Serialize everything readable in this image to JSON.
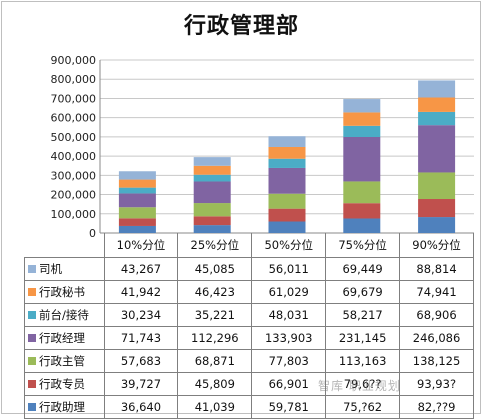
{
  "chart_data": {
    "type": "bar",
    "stacked": true,
    "title": "行政管理部",
    "categories": [
      "10%分位",
      "25%分位",
      "50%分位",
      "75%分位",
      "90%分位"
    ],
    "ylim": [
      0,
      900000
    ],
    "yticks": [
      "0",
      "100,000",
      "200,000",
      "300,000",
      "400,000",
      "500,000",
      "600,000",
      "700,000",
      "800,000",
      "900,000"
    ],
    "grid": true,
    "series": [
      {
        "name": "行政助理",
        "color": "#4f81bd",
        "values": [
          36640,
          41039,
          59781,
          null,
          null
        ],
        "display": [
          "36,640",
          "41,039",
          "59,781",
          "75,?62",
          "82,??9"
        ]
      },
      {
        "name": "行政专员",
        "color": "#c0504d",
        "values": [
          39727,
          45809,
          66901,
          null,
          null
        ],
        "display": [
          "39,727",
          "45,809",
          "66,901",
          "79,6??",
          "93,93?"
        ]
      },
      {
        "name": "行政主管",
        "color": "#9bbb59",
        "values": [
          57683,
          68871,
          77803,
          113163,
          138125
        ],
        "display": [
          "57,683",
          "68,871",
          "77,803",
          "113,163",
          "138,125"
        ]
      },
      {
        "name": "行政经理",
        "color": "#8064a2",
        "values": [
          71743,
          112296,
          133903,
          231145,
          246086
        ],
        "display": [
          "71,743",
          "112,296",
          "133,903",
          "231,145",
          "246,086"
        ]
      },
      {
        "name": "前台/接待",
        "color": "#4bacc6",
        "values": [
          30234,
          35221,
          48031,
          58217,
          68906
        ],
        "display": [
          "30,234",
          "35,221",
          "48,031",
          "58,217",
          "68,906"
        ]
      },
      {
        "name": "行政秘书",
        "color": "#f79646",
        "values": [
          41942,
          46423,
          61029,
          69679,
          74941
        ],
        "display": [
          "41,942",
          "46,423",
          "61,029",
          "69,679",
          "74,941"
        ]
      },
      {
        "name": "司机",
        "color": "#95b3d7",
        "values": [
          43267,
          45085,
          56011,
          69449,
          88814
        ],
        "display": [
          "43,267",
          "45,085",
          "56,011",
          "69,449",
          "88,814"
        ]
      }
    ],
    "table_order": [
      "司机",
      "行政秘书",
      "前台/接待",
      "行政经理",
      "行政主管",
      "行政专员",
      "行政助理"
    ]
  },
  "watermark": "智库  职业规划"
}
